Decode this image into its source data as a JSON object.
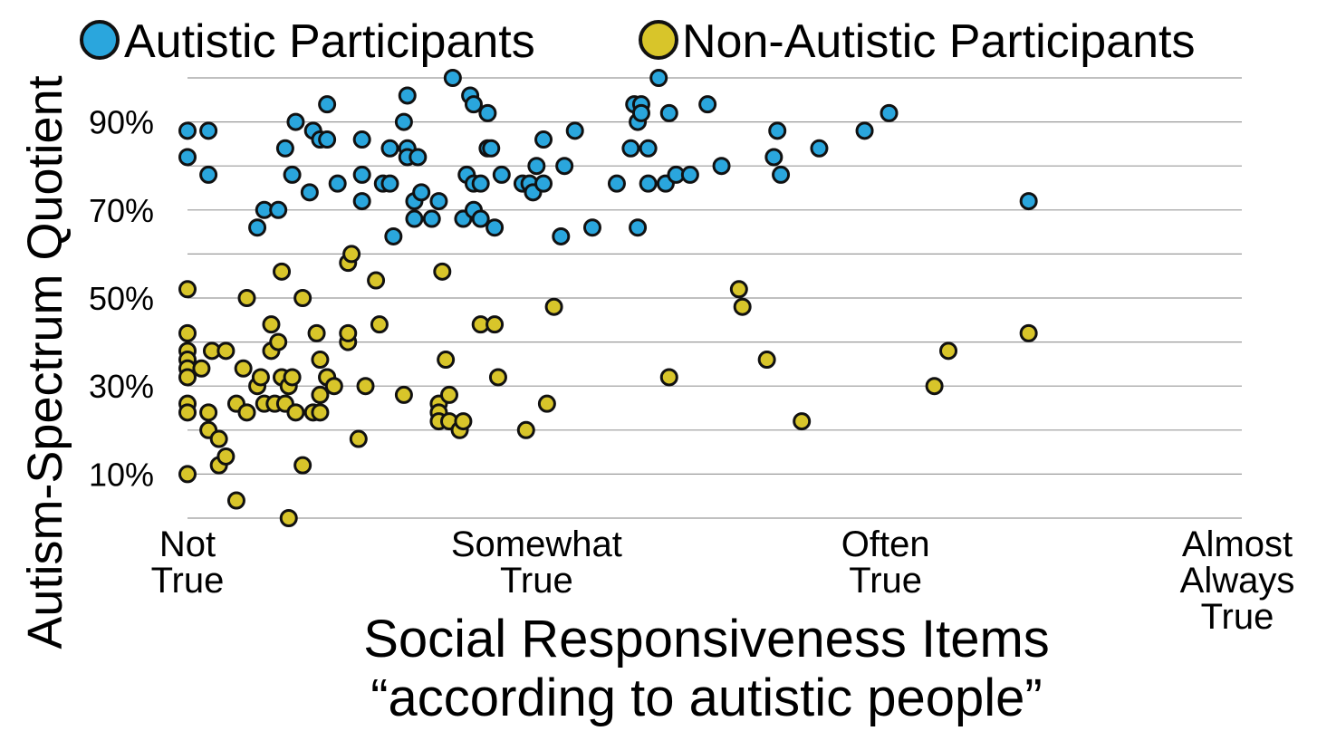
{
  "chart_data": {
    "type": "scatter",
    "title": "",
    "ylabel": "Autism-Spectrum Quotient",
    "xlabel_lines": [
      "Social Responsiveness Items",
      "“according to autistic people”"
    ],
    "ylim": [
      0,
      100
    ],
    "xlim": [
      1,
      4
    ],
    "grid": true,
    "legend_placement": "top",
    "y_ticks": [
      {
        "value": 10,
        "label": "10%"
      },
      {
        "value": 30,
        "label": "30%"
      },
      {
        "value": 50,
        "label": "50%"
      },
      {
        "value": 70,
        "label": "70%"
      },
      {
        "value": 90,
        "label": "90%"
      }
    ],
    "x_ticks": [
      {
        "value": 1,
        "lines": [
          "Not",
          "True"
        ]
      },
      {
        "value": 2,
        "lines": [
          "Somewhat",
          "True"
        ]
      },
      {
        "value": 3,
        "lines": [
          "Often",
          "True"
        ]
      },
      {
        "value": 4,
        "lines": [
          "Almost",
          "Always",
          "True"
        ]
      }
    ],
    "series": [
      {
        "name": "Autistic Participants",
        "color": "#2aa6dd",
        "points": [
          [
            1.0,
            88
          ],
          [
            1.0,
            82
          ],
          [
            1.06,
            88
          ],
          [
            1.06,
            78
          ],
          [
            1.2,
            66
          ],
          [
            1.22,
            70
          ],
          [
            1.26,
            70
          ],
          [
            1.28,
            84
          ],
          [
            1.3,
            78
          ],
          [
            1.31,
            90
          ],
          [
            1.35,
            74
          ],
          [
            1.36,
            88
          ],
          [
            1.38,
            86
          ],
          [
            1.4,
            94
          ],
          [
            1.4,
            86
          ],
          [
            1.43,
            76
          ],
          [
            1.5,
            86
          ],
          [
            1.5,
            78
          ],
          [
            1.5,
            72
          ],
          [
            1.56,
            76
          ],
          [
            1.58,
            84
          ],
          [
            1.58,
            76
          ],
          [
            1.59,
            64
          ],
          [
            1.62,
            90
          ],
          [
            1.63,
            96
          ],
          [
            1.63,
            84
          ],
          [
            1.63,
            82
          ],
          [
            1.65,
            72
          ],
          [
            1.65,
            68
          ],
          [
            1.66,
            82
          ],
          [
            1.67,
            74
          ],
          [
            1.7,
            68
          ],
          [
            1.72,
            72
          ],
          [
            1.76,
            100
          ],
          [
            1.79,
            68
          ],
          [
            1.8,
            78
          ],
          [
            1.81,
            96
          ],
          [
            1.82,
            94
          ],
          [
            1.82,
            76
          ],
          [
            1.82,
            70
          ],
          [
            1.84,
            76
          ],
          [
            1.84,
            68
          ],
          [
            1.86,
            84
          ],
          [
            1.86,
            92
          ],
          [
            1.87,
            84
          ],
          [
            1.88,
            66
          ],
          [
            1.9,
            78
          ],
          [
            1.96,
            76
          ],
          [
            1.98,
            76
          ],
          [
            1.99,
            74
          ],
          [
            2.0,
            80
          ],
          [
            2.02,
            76
          ],
          [
            2.02,
            86
          ],
          [
            2.07,
            64
          ],
          [
            2.08,
            80
          ],
          [
            2.11,
            88
          ],
          [
            2.16,
            66
          ],
          [
            2.23,
            76
          ],
          [
            2.27,
            84
          ],
          [
            2.28,
            94
          ],
          [
            2.29,
            66
          ],
          [
            2.29,
            90
          ],
          [
            2.3,
            94
          ],
          [
            2.3,
            92
          ],
          [
            2.32,
            84
          ],
          [
            2.32,
            76
          ],
          [
            2.35,
            100
          ],
          [
            2.37,
            76
          ],
          [
            2.38,
            92
          ],
          [
            2.4,
            78
          ],
          [
            2.44,
            78
          ],
          [
            2.49,
            94
          ],
          [
            2.53,
            80
          ],
          [
            2.68,
            82
          ],
          [
            2.69,
            88
          ],
          [
            2.7,
            78
          ],
          [
            2.81,
            84
          ],
          [
            2.94,
            88
          ],
          [
            3.01,
            92
          ],
          [
            3.41,
            72
          ]
        ]
      },
      {
        "name": "Non-Autistic Participants",
        "color": "#d8c52a",
        "points": [
          [
            1.0,
            52
          ],
          [
            1.0,
            42
          ],
          [
            1.0,
            38
          ],
          [
            1.0,
            36
          ],
          [
            1.0,
            34
          ],
          [
            1.0,
            32
          ],
          [
            1.0,
            26
          ],
          [
            1.0,
            24
          ],
          [
            1.0,
            10
          ],
          [
            1.04,
            34
          ],
          [
            1.06,
            24
          ],
          [
            1.06,
            20
          ],
          [
            1.07,
            38
          ],
          [
            1.09,
            18
          ],
          [
            1.09,
            12
          ],
          [
            1.11,
            38
          ],
          [
            1.11,
            14
          ],
          [
            1.14,
            26
          ],
          [
            1.14,
            4
          ],
          [
            1.16,
            34
          ],
          [
            1.17,
            24
          ],
          [
            1.17,
            50
          ],
          [
            1.2,
            30
          ],
          [
            1.21,
            32
          ],
          [
            1.22,
            26
          ],
          [
            1.24,
            38
          ],
          [
            1.24,
            44
          ],
          [
            1.25,
            26
          ],
          [
            1.26,
            40
          ],
          [
            1.27,
            56
          ],
          [
            1.27,
            32
          ],
          [
            1.28,
            26
          ],
          [
            1.29,
            30
          ],
          [
            1.29,
            0
          ],
          [
            1.3,
            32
          ],
          [
            1.31,
            24
          ],
          [
            1.33,
            50
          ],
          [
            1.33,
            12
          ],
          [
            1.36,
            24
          ],
          [
            1.37,
            42
          ],
          [
            1.38,
            36
          ],
          [
            1.38,
            28
          ],
          [
            1.38,
            24
          ],
          [
            1.4,
            32
          ],
          [
            1.4,
            32
          ],
          [
            1.42,
            30
          ],
          [
            1.46,
            40
          ],
          [
            1.46,
            42
          ],
          [
            1.46,
            58
          ],
          [
            1.47,
            60
          ],
          [
            1.49,
            18
          ],
          [
            1.51,
            30
          ],
          [
            1.54,
            54
          ],
          [
            1.55,
            44
          ],
          [
            1.62,
            28
          ],
          [
            1.72,
            26
          ],
          [
            1.72,
            24
          ],
          [
            1.72,
            22
          ],
          [
            1.73,
            56
          ],
          [
            1.74,
            36
          ],
          [
            1.75,
            28
          ],
          [
            1.75,
            22
          ],
          [
            1.78,
            20
          ],
          [
            1.79,
            22
          ],
          [
            1.84,
            44
          ],
          [
            1.88,
            44
          ],
          [
            1.89,
            32
          ],
          [
            1.97,
            20
          ],
          [
            2.03,
            26
          ],
          [
            2.05,
            48
          ],
          [
            2.38,
            32
          ],
          [
            2.58,
            52
          ],
          [
            2.59,
            48
          ],
          [
            2.66,
            36
          ],
          [
            2.76,
            22
          ],
          [
            3.14,
            30
          ],
          [
            3.18,
            38
          ],
          [
            3.41,
            42
          ]
        ]
      }
    ]
  }
}
